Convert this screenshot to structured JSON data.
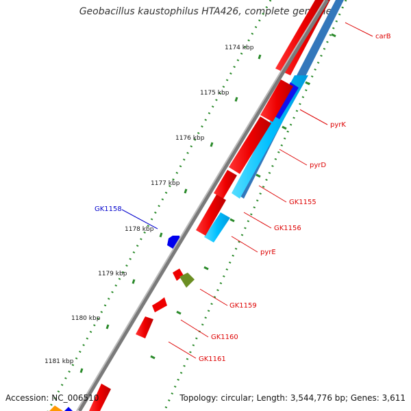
{
  "map": {
    "title": "Geobacillus kaustophilus HTA426, complete genome",
    "accession": "Accession: NC_006510",
    "summary": "Topology: circular; Length: 3,544,776 bp; Genes: 3,611",
    "ruler_labels": [
      "1174 kbp",
      "1175 kbp",
      "1176 kbp",
      "1177 kbp",
      "1178 kbp",
      "1179 kbp",
      "1180 kbp",
      "1181 kbp"
    ],
    "gene_labels": [
      {
        "name": "carB",
        "color": "#dd0000"
      },
      {
        "name": "pyrK",
        "color": "#dd0000"
      },
      {
        "name": "pyrD",
        "color": "#dd0000"
      },
      {
        "name": "GK1155",
        "color": "#dd0000"
      },
      {
        "name": "GK1156",
        "color": "#dd0000"
      },
      {
        "name": "pyrE",
        "color": "#dd0000"
      },
      {
        "name": "GK1158",
        "color": "#0000cc"
      },
      {
        "name": "GK1159",
        "color": "#dd0000"
      },
      {
        "name": "GK1160",
        "color": "#dd0000"
      },
      {
        "name": "GK1161",
        "color": "#dd0000"
      }
    ],
    "colors": {
      "backbone": "#8a8a8a",
      "gene_red": "#ff0000",
      "gene_cyan": "#00bfff",
      "gene_blue": "#0000ee",
      "gene_olive": "#6b8e23",
      "gene_orange": "#ff9900",
      "tick_green": "#228b22"
    }
  }
}
